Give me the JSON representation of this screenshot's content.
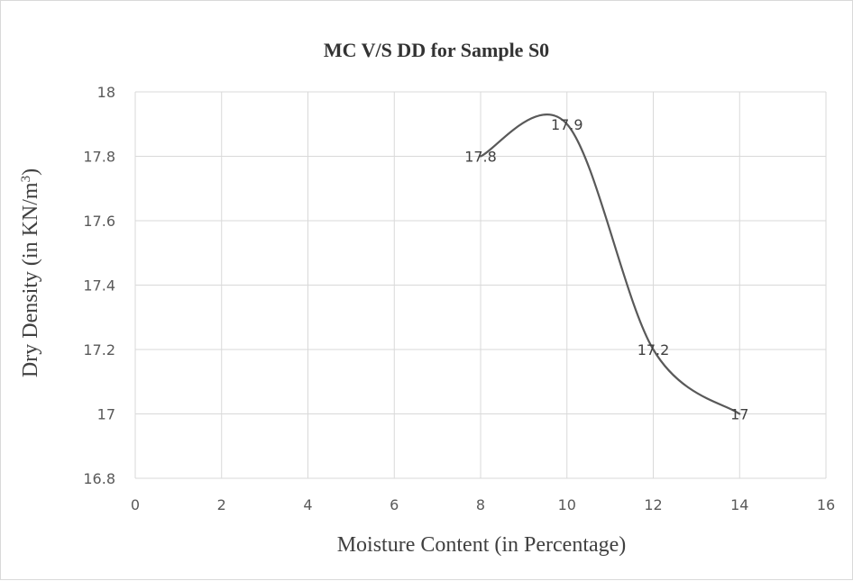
{
  "chart_data": {
    "type": "line",
    "title": "MC V/S DD for Sample S0",
    "xlabel": "Moisture Content (in Percentage)",
    "ylabel": {
      "main": "Dry Density (in KN/m",
      "sup": "3",
      "end": ")"
    },
    "xlim": [
      0,
      16
    ],
    "ylim": [
      16.8,
      18
    ],
    "xticks": [
      "0",
      "2",
      "4",
      "6",
      "8",
      "10",
      "12",
      "14",
      "16"
    ],
    "yticks": [
      "16.8",
      "17",
      "17.2",
      "17.4",
      "17.6",
      "17.8",
      "18"
    ],
    "grid": true,
    "smooth": true,
    "series": [
      {
        "color": "#595959",
        "x": [
          8,
          10,
          12,
          14
        ],
        "y": [
          17.8,
          17.9,
          17.2,
          17
        ],
        "labels": [
          "17.8",
          "17.9",
          "17.2",
          "17"
        ]
      }
    ]
  }
}
